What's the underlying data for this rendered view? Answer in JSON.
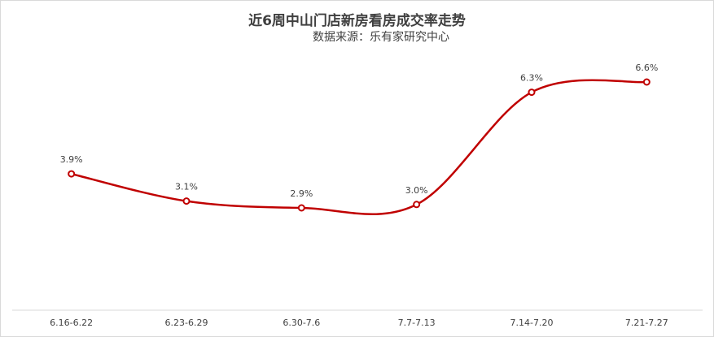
{
  "chart_data": {
    "type": "line",
    "title": "近6周中山门店新房看房成交率走势",
    "subtitle": "数据来源：乐有家研究中心",
    "categories": [
      "6.16-6.22",
      "6.23-6.29",
      "6.30-7.6",
      "7.7-7.13",
      "7.14-7.20",
      "7.21-7.27"
    ],
    "series": [
      {
        "values": [
          3.9,
          3.1,
          2.9,
          3.0,
          6.3,
          6.6
        ],
        "labels": [
          "3.9%",
          "3.1%",
          "2.9%",
          "3.0%",
          "6.3%",
          "6.6%"
        ],
        "color": "#c00000"
      }
    ],
    "xlabel": "",
    "ylabel": "",
    "ylim": [
      0,
      8
    ],
    "grid": false,
    "smooth": true,
    "legend": "none"
  }
}
